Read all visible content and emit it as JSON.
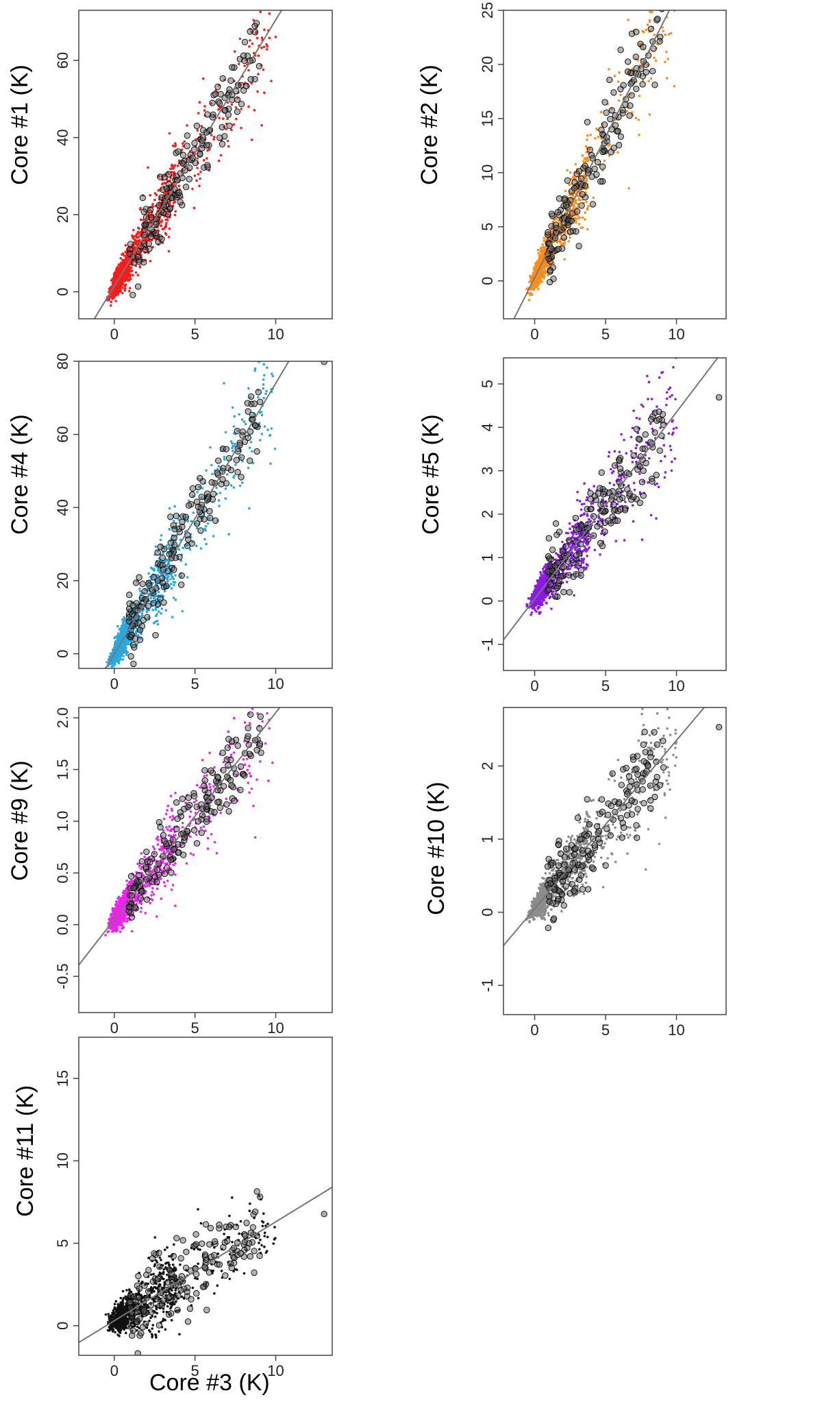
{
  "chart_data": [
    {
      "id": "c1",
      "type": "scatter",
      "ylabel": "Core #1 (K)",
      "xlabel": "",
      "color": "#ff1a1a",
      "xlim": [
        -2.2,
        13.5
      ],
      "ylim": [
        -7,
        73
      ],
      "xticks": [
        0,
        5,
        10
      ],
      "yticks": [
        0,
        20,
        40,
        60
      ],
      "fit": {
        "slope": 6.9,
        "intercept": 1.5
      },
      "series_max_x": 13,
      "n_points": 1200
    },
    {
      "id": "c2",
      "type": "scatter",
      "ylabel": "Core #2 (K)",
      "xlabel": "",
      "color": "#ff8c1a",
      "xlim": [
        -2.2,
        13.5
      ],
      "ylim": [
        -3.5,
        25
      ],
      "xticks": [
        0,
        5,
        10
      ],
      "yticks": [
        0,
        5,
        10,
        15,
        20,
        25
      ],
      "fit": {
        "slope": 2.6,
        "intercept": 0.3
      },
      "series_max_x": 13,
      "n_points": 1200
    },
    {
      "id": "c4",
      "type": "scatter",
      "ylabel": "Core #4 (K)",
      "xlabel": "",
      "color": "#29a8e0",
      "xlim": [
        -2.2,
        13.5
      ],
      "ylim": [
        -4,
        80
      ],
      "xticks": [
        0,
        5,
        10
      ],
      "yticks": [
        0,
        20,
        40,
        60,
        80
      ],
      "fit": {
        "slope": 7.4,
        "intercept": 0
      },
      "series_max_x": 13,
      "n_points": 1200
    },
    {
      "id": "c5",
      "type": "scatter",
      "ylabel": "Core #5 (K)",
      "xlabel": "",
      "color": "#8b1ae6",
      "xlim": [
        -2.2,
        13.5
      ],
      "ylim": [
        -1.6,
        5.6
      ],
      "xticks": [
        0,
        5,
        10
      ],
      "yticks": [
        -1,
        0,
        1,
        2,
        3,
        4,
        5
      ],
      "fit": {
        "slope": 0.43,
        "intercept": 0.05
      },
      "series_max_x": 13,
      "n_points": 1200
    },
    {
      "id": "c9",
      "type": "scatter",
      "ylabel": "Core #9 (K)",
      "xlabel": "",
      "color": "#ee22ee",
      "xlim": [
        -2.2,
        13.5
      ],
      "ylim": [
        -0.85,
        2.1
      ],
      "xticks": [
        0,
        5,
        10
      ],
      "yticks": [
        -0.5,
        0.0,
        0.5,
        1.0,
        1.5,
        2.0
      ],
      "ytick_labels": [
        "-0.5",
        "0.0",
        "0.5",
        "1.0",
        "1.5",
        "2.0"
      ],
      "fit": {
        "slope": 0.2,
        "intercept": 0.05
      },
      "series_max_x": 13,
      "n_points": 1200
    },
    {
      "id": "c10",
      "type": "scatter",
      "ylabel": "Core #10 (K)",
      "xlabel": "",
      "color": "#8c8c8c",
      "xlim": [
        -2.2,
        13.5
      ],
      "ylim": [
        -1.4,
        2.8
      ],
      "xticks": [
        0,
        5,
        10
      ],
      "yticks": [
        -1,
        0,
        1,
        2
      ],
      "fit": {
        "slope": 0.23,
        "intercept": 0.05
      },
      "series_max_x": 13,
      "n_points": 1200
    },
    {
      "id": "c11",
      "type": "scatter",
      "ylabel": "Core #11 (K)",
      "xlabel": "Core #3 (K)",
      "color": "#111111",
      "xlim": [
        -2.2,
        13.5
      ],
      "ylim": [
        -1.8,
        17.5
      ],
      "xticks": [
        0,
        5,
        10
      ],
      "yticks": [
        0,
        5,
        10,
        15
      ],
      "fit": {
        "slope": 0.6,
        "intercept": 0.3
      },
      "series_max_x": 13,
      "n_points": 1000
    }
  ]
}
